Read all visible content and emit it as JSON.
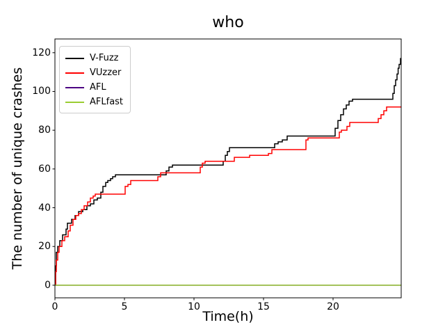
{
  "figure": {
    "background": "#ffffff",
    "spine_color": "#000000",
    "text_color": "#000000"
  },
  "chart_data": {
    "type": "line",
    "title": "who",
    "xlabel": "Time(h)",
    "ylabel": "The number of unique crashes",
    "xlim": [
      0,
      24.9
    ],
    "ylim": [
      -6.5,
      127.1
    ],
    "x_ticks": [
      0,
      5,
      10,
      15,
      20
    ],
    "y_ticks": [
      0,
      20,
      40,
      60,
      80,
      100,
      120
    ],
    "grid": false,
    "step_mode": "post",
    "line_width": 1.5,
    "legend_position": "upper-left",
    "x_end": 24.9,
    "series": [
      {
        "name": "V-Fuzz",
        "color": "#000000",
        "points": [
          [
            0,
            0
          ],
          [
            0.05,
            10
          ],
          [
            0.1,
            17
          ],
          [
            0.2,
            20
          ],
          [
            0.35,
            23
          ],
          [
            0.55,
            26
          ],
          [
            0.8,
            29
          ],
          [
            0.9,
            32
          ],
          [
            1.2,
            34
          ],
          [
            1.45,
            36
          ],
          [
            1.7,
            38
          ],
          [
            2.0,
            39
          ],
          [
            2.3,
            41
          ],
          [
            2.55,
            42
          ],
          [
            2.8,
            44
          ],
          [
            3.05,
            45
          ],
          [
            3.3,
            48
          ],
          [
            3.45,
            51
          ],
          [
            3.65,
            53
          ],
          [
            3.8,
            54
          ],
          [
            4.0,
            55
          ],
          [
            4.15,
            56
          ],
          [
            4.35,
            57
          ],
          [
            8.0,
            59
          ],
          [
            8.2,
            61
          ],
          [
            8.45,
            62
          ],
          [
            12.1,
            64
          ],
          [
            12.25,
            67
          ],
          [
            12.4,
            69
          ],
          [
            12.55,
            71
          ],
          [
            15.8,
            73
          ],
          [
            16.05,
            74
          ],
          [
            16.35,
            75
          ],
          [
            16.7,
            77
          ],
          [
            20.15,
            81
          ],
          [
            20.35,
            85
          ],
          [
            20.55,
            88
          ],
          [
            20.75,
            91
          ],
          [
            20.95,
            93
          ],
          [
            21.15,
            95
          ],
          [
            21.4,
            96
          ],
          [
            24.3,
            99
          ],
          [
            24.4,
            103
          ],
          [
            24.5,
            106
          ],
          [
            24.6,
            109
          ],
          [
            24.68,
            112
          ],
          [
            24.75,
            114
          ],
          [
            24.85,
            117
          ]
        ]
      },
      {
        "name": "VUzzer",
        "color": "#ff0000",
        "points": [
          [
            0,
            0
          ],
          [
            0.05,
            7
          ],
          [
            0.1,
            13
          ],
          [
            0.2,
            17
          ],
          [
            0.3,
            20
          ],
          [
            0.5,
            23
          ],
          [
            0.7,
            25
          ],
          [
            0.95,
            28
          ],
          [
            1.1,
            31
          ],
          [
            1.3,
            34
          ],
          [
            1.5,
            36
          ],
          [
            1.7,
            37
          ],
          [
            1.9,
            39
          ],
          [
            2.1,
            41
          ],
          [
            2.35,
            43
          ],
          [
            2.55,
            45
          ],
          [
            2.75,
            46
          ],
          [
            2.9,
            47
          ],
          [
            5.05,
            51
          ],
          [
            5.25,
            52
          ],
          [
            5.45,
            54
          ],
          [
            7.4,
            56
          ],
          [
            7.6,
            58
          ],
          [
            10.45,
            61
          ],
          [
            10.6,
            63
          ],
          [
            10.8,
            64
          ],
          [
            12.9,
            66
          ],
          [
            14.0,
            67
          ],
          [
            15.35,
            68
          ],
          [
            15.6,
            70
          ],
          [
            18.05,
            75
          ],
          [
            18.2,
            76
          ],
          [
            20.45,
            79
          ],
          [
            20.6,
            80
          ],
          [
            21.0,
            82
          ],
          [
            21.2,
            84
          ],
          [
            23.25,
            86
          ],
          [
            23.45,
            88
          ],
          [
            23.65,
            90
          ],
          [
            23.85,
            92
          ]
        ]
      },
      {
        "name": "AFL",
        "color": "#4b0082",
        "points": [
          [
            0,
            0
          ]
        ]
      },
      {
        "name": "AFLfast",
        "color": "#9acd32",
        "points": [
          [
            0,
            0
          ]
        ]
      }
    ]
  },
  "legend": {
    "items": [
      {
        "label": "V-Fuzz",
        "color": "#000000"
      },
      {
        "label": "VUzzer",
        "color": "#ff0000"
      },
      {
        "label": "AFL",
        "color": "#4b0082"
      },
      {
        "label": "AFLfast",
        "color": "#9acd32"
      }
    ]
  }
}
